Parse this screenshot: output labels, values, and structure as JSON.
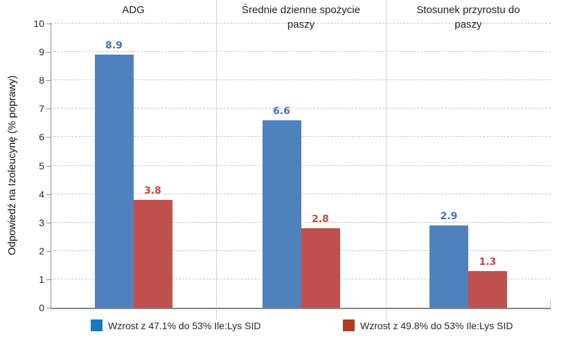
{
  "chart_data": {
    "type": "bar",
    "title": "",
    "ylabel": "Odpowiedź na Izoleucynę (% poprawy)",
    "xlabel": "",
    "ylim": [
      0,
      10
    ],
    "yticks": [
      0,
      1,
      2,
      3,
      4,
      5,
      6,
      7,
      8,
      9,
      10
    ],
    "grid": "horizontal dashed, dotted vertical panel dividers",
    "legend_position": "bottom",
    "categories": [
      "ADG",
      "Średnie dzienne spożycie paszy",
      "Stosunek przyrostu do paszy"
    ],
    "series": [
      {
        "name": "Wzrost z 47.1% do 53% Ile:Lys SID",
        "values": [
          8.9,
          6.6,
          2.9
        ],
        "bar_color": "#4F81BD",
        "value_label_color": "#4472B8",
        "legend_swatch_color": "#1779C2"
      },
      {
        "name": "Wzrost z 49.8% do 53% Ile:Lys SID",
        "values": [
          3.8,
          2.8,
          1.3
        ],
        "bar_color": "#C0504D",
        "value_label_color": "#C04A42",
        "legend_swatch_color": "#B23A21"
      }
    ]
  }
}
